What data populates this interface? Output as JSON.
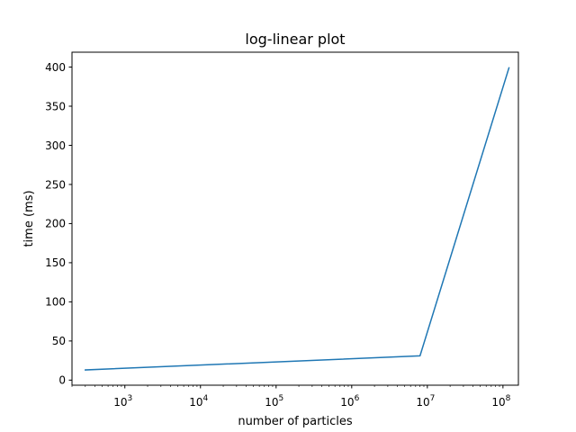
{
  "chart_data": {
    "type": "line",
    "title": "log-linear plot",
    "xlabel": "number of particles",
    "ylabel": "time (ms)",
    "xscale": "log",
    "xlim": [
      200,
      160000000
    ],
    "ylim": [
      -6.5,
      419
    ],
    "grid": false,
    "series": [
      {
        "name": "time",
        "color": "#1f77b4",
        "x": [
          300,
          8000000,
          120000000
        ],
        "y": [
          13,
          31,
          399
        ]
      }
    ],
    "y_ticks": [
      0,
      50,
      100,
      150,
      200,
      250,
      300,
      350,
      400
    ],
    "x_major_exponents": [
      3,
      4,
      5,
      6,
      7,
      8
    ]
  }
}
